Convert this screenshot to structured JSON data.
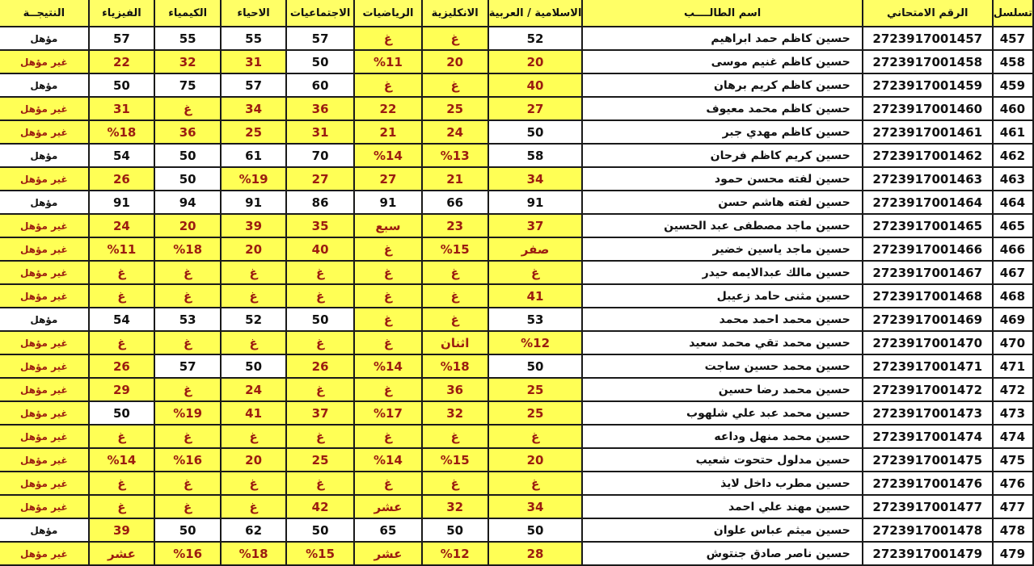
{
  "headers": [
    "تسلسل",
    "الرقم الامتحاني",
    "اسم الطالــــب",
    "الاسلامية / العربية",
    "الانكليزية",
    "الرياضيات",
    "الاجتماعيات",
    "الاحياء",
    "الكيمياء",
    "الفيزياء",
    "النتيجــة"
  ],
  "pass_label": "مؤهل",
  "colors": {
    "header_bg": "#ffff66",
    "fail_bg": "#ffff55",
    "fail_text": "#9b1c10",
    "pass_text": "#111111"
  },
  "rows": [
    [
      "457",
      "2723917001457",
      "حسين كاظم حمد ابراهيم",
      "52",
      "غ",
      "غ",
      "57",
      "55",
      "55",
      "57",
      "مؤهل"
    ],
    [
      "458",
      "2723917001458",
      "حسين كاظم غنيم موسى",
      "20",
      "20",
      "%11",
      "50",
      "31",
      "32",
      "22",
      "غير مؤهل"
    ],
    [
      "459",
      "2723917001459",
      "حسين كاظم كريم برهان",
      "40",
      "غ",
      "غ",
      "60",
      "57",
      "75",
      "50",
      "مؤهل"
    ],
    [
      "460",
      "2723917001460",
      "حسين كاظم محمد معيوف",
      "27",
      "25",
      "22",
      "36",
      "34",
      "غ",
      "31",
      "غير مؤهل"
    ],
    [
      "461",
      "2723917001461",
      "حسين كاظم مهدي جبر",
      "50",
      "24",
      "21",
      "31",
      "25",
      "36",
      "%18",
      "غير مؤهل"
    ],
    [
      "462",
      "2723917001462",
      "حسين كريم كاظم فرحان",
      "58",
      "%13",
      "%14",
      "70",
      "61",
      "50",
      "54",
      "مؤهل"
    ],
    [
      "463",
      "2723917001463",
      "حسين لفته محسن حمود",
      "34",
      "21",
      "27",
      "27",
      "%19",
      "50",
      "26",
      "غير مؤهل"
    ],
    [
      "464",
      "2723917001464",
      "حسين لفته هاشم حسن",
      "91",
      "66",
      "91",
      "86",
      "91",
      "94",
      "91",
      "مؤهل"
    ],
    [
      "465",
      "2723917001465",
      "حسين ماجد مصطفى عبد الحسين",
      "37",
      "23",
      "سبع",
      "35",
      "39",
      "20",
      "24",
      "غير مؤهل"
    ],
    [
      "466",
      "2723917001466",
      "حسين ماجد ياسين خضير",
      "صفر",
      "%15",
      "غ",
      "40",
      "20",
      "%18",
      "%11",
      "غير مؤهل"
    ],
    [
      "467",
      "2723917001467",
      "حسين مالك عبدالايمه حيدر",
      "غ",
      "غ",
      "غ",
      "غ",
      "غ",
      "غ",
      "غ",
      "غير مؤهل"
    ],
    [
      "468",
      "2723917001468",
      "حسين مثنى حامد زعيبل",
      "41",
      "غ",
      "غ",
      "غ",
      "غ",
      "غ",
      "غ",
      "غير مؤهل"
    ],
    [
      "469",
      "2723917001469",
      "حسين محمد احمد محمد",
      "53",
      "غ",
      "غ",
      "50",
      "52",
      "53",
      "54",
      "مؤهل"
    ],
    [
      "470",
      "2723917001470",
      "حسين محمد تقي محمد سعيد",
      "%12",
      "اثنان",
      "غ",
      "غ",
      "غ",
      "غ",
      "غ",
      "غير مؤهل"
    ],
    [
      "471",
      "2723917001471",
      "حسين محمد حسين ساجت",
      "50",
      "%18",
      "%14",
      "26",
      "50",
      "57",
      "26",
      "غير مؤهل"
    ],
    [
      "472",
      "2723917001472",
      "حسين محمد رضا حسين",
      "25",
      "36",
      "غ",
      "غ",
      "24",
      "غ",
      "29",
      "غير مؤهل"
    ],
    [
      "473",
      "2723917001473",
      "حسين محمد عبد علي شلهوب",
      "25",
      "32",
      "%17",
      "37",
      "41",
      "%19",
      "50",
      "غير مؤهل"
    ],
    [
      "474",
      "2723917001474",
      "حسين محمد منهل وداعه",
      "غ",
      "غ",
      "غ",
      "غ",
      "غ",
      "غ",
      "غ",
      "غير مؤهل"
    ],
    [
      "475",
      "2723917001475",
      "حسين مدلول حتحوت شعيب",
      "20",
      "%15",
      "%14",
      "25",
      "20",
      "%16",
      "%14",
      "غير مؤهل"
    ],
    [
      "476",
      "2723917001476",
      "حسين مطرب داخل لايذ",
      "غ",
      "غ",
      "غ",
      "غ",
      "غ",
      "غ",
      "غ",
      "غير مؤهل"
    ],
    [
      "477",
      "2723917001477",
      "حسين مهند علي احمد",
      "34",
      "32",
      "عشر",
      "42",
      "غ",
      "غ",
      "غ",
      "غير مؤهل"
    ],
    [
      "478",
      "2723917001478",
      "حسين ميثم عباس علوان",
      "50",
      "50",
      "65",
      "50",
      "62",
      "50",
      "39",
      "مؤهل"
    ],
    [
      "479",
      "2723917001479",
      "حسين ناصر صادق جنتوش",
      "28",
      "%12",
      "عشر",
      "%15",
      "%18",
      "%16",
      "عشر",
      "غير مؤهل"
    ]
  ]
}
